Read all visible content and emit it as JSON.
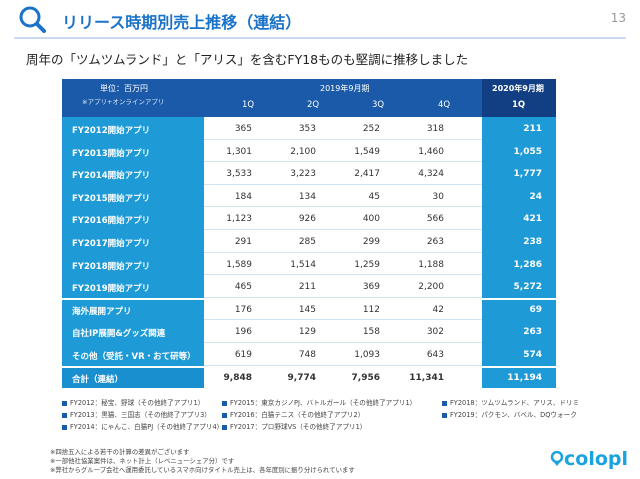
{
  "header": {
    "title": "リリース時期別売上推移（連結）",
    "page_number": "13",
    "subtitle": "周年の「ツムツムランド」と「アリス」を含むFY18ものも堅調に推移しました"
  },
  "table": {
    "unit_label": "単位：百万円",
    "unit_note": "※アプリ+オンラインアプリ",
    "period_main": "2019年9月期",
    "period_last": "2020年9月期",
    "quarters": [
      "1Q",
      "2Q",
      "3Q",
      "4Q"
    ],
    "last_quarter": "1Q",
    "rows": [
      {
        "label": "FY2012開始アプリ",
        "values": [
          "365",
          "353",
          "252",
          "318"
        ],
        "last": "211"
      },
      {
        "label": "FY2013開始アプリ",
        "values": [
          "1,301",
          "2,100",
          "1,549",
          "1,460"
        ],
        "last": "1,055"
      },
      {
        "label": "FY2014開始アプリ",
        "values": [
          "3,533",
          "3,223",
          "2,417",
          "4,324"
        ],
        "last": "1,777"
      },
      {
        "label": "FY2015開始アプリ",
        "values": [
          "184",
          "134",
          "45",
          "30"
        ],
        "last": "24"
      },
      {
        "label": "FY2016開始アプリ",
        "values": [
          "1,123",
          "926",
          "400",
          "566"
        ],
        "last": "421"
      },
      {
        "label": "FY2017開始アプリ",
        "values": [
          "291",
          "285",
          "299",
          "263"
        ],
        "last": "238"
      },
      {
        "label": "FY2018開始アプリ",
        "values": [
          "1,589",
          "1,514",
          "1,259",
          "1,188"
        ],
        "last": "1,286"
      },
      {
        "label": "FY2019開始アプリ",
        "values": [
          "465",
          "211",
          "369",
          "2,200"
        ],
        "last": "5,272"
      },
      {
        "label": "海外展開アプリ",
        "values": [
          "176",
          "145",
          "112",
          "42"
        ],
        "last": "69"
      },
      {
        "label": "自社IP展開&グッズ関連",
        "values": [
          "196",
          "129",
          "158",
          "302"
        ],
        "last": "263"
      },
      {
        "label": "その他（受託・VR・おて研等）",
        "values": [
          "619",
          "748",
          "1,093",
          "643"
        ],
        "last": "574"
      },
      {
        "label": "合計（連結）",
        "values": [
          "9,848",
          "9,774",
          "7,956",
          "11,341"
        ],
        "last": "11,194"
      }
    ]
  },
  "legend": [
    "FY2012：秘宝、野球（その他終了アプリ1）",
    "FY2013：黒猫、三国志（その他終了アプリ3）",
    "FY2014：にゃんこ、白猫PJ（その他終了アプリ4）",
    "FY2015：東京カジノPJ、バトルガール（その他終了アプリ1）",
    "FY2016：白猫テニス（その他終了アプリ2）",
    "FY2017：プロ野球VS（その他終了アプリ1）",
    "FY2018：ツムツムランド、アリス、ドリミ",
    "FY2019：パクモン、バベル、DQウォーク"
  ],
  "notes": [
    "※四捨五入による若干の計算の差異がございます",
    "※一部他社協業案件は、ネット計上（レベニューシェア分）です",
    "※弊社からグループ会社へ運用委託しているスマホ向けタイトル売上は、各年度別に振り分けられています"
  ],
  "logo_text": "colopl",
  "colors": {
    "accent": "#1a73c8",
    "header_bg": "#1a5aa8",
    "label_bg": "#1e9ad6"
  }
}
